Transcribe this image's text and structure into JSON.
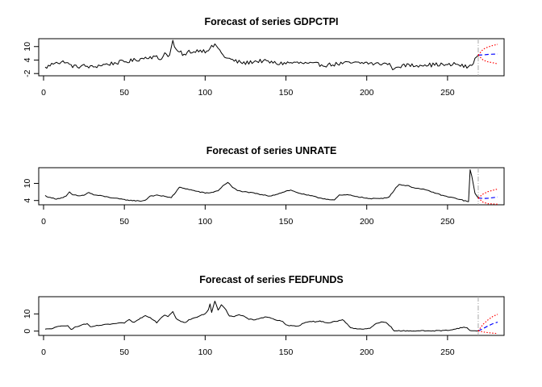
{
  "chart_data": [
    {
      "type": "line",
      "title": "Forecast of series GDPCTPI",
      "xlabel": "",
      "ylabel": "",
      "xlim": [
        -3,
        285
      ],
      "ylim": [
        -3,
        13.5
      ],
      "xticks": [
        0,
        50,
        100,
        150,
        200,
        250
      ],
      "yticks": [
        -2,
        4,
        10
      ],
      "forecast_start": 269,
      "anchors": [
        [
          1,
          0.5
        ],
        [
          5,
          2.0
        ],
        [
          8,
          3.6
        ],
        [
          10,
          2.4
        ],
        [
          13,
          3.5
        ],
        [
          16,
          1.8
        ],
        [
          20,
          1.0
        ],
        [
          25,
          1.4
        ],
        [
          30,
          0.8
        ],
        [
          35,
          1.7
        ],
        [
          40,
          2.2
        ],
        [
          45,
          2.8
        ],
        [
          48,
          3.1
        ],
        [
          52,
          3.4
        ],
        [
          56,
          3.9
        ],
        [
          60,
          4.5
        ],
        [
          65,
          5.5
        ],
        [
          70,
          5.2
        ],
        [
          72,
          4.2
        ],
        [
          75,
          7.0
        ],
        [
          78,
          6.0
        ],
        [
          80,
          12.5
        ],
        [
          82,
          8.0
        ],
        [
          85,
          7.2
        ],
        [
          88,
          6.0
        ],
        [
          90,
          8.0
        ],
        [
          93,
          7.5
        ],
        [
          96,
          8.5
        ],
        [
          100,
          8.0
        ],
        [
          104,
          9.8
        ],
        [
          107,
          10.6
        ],
        [
          110,
          7.0
        ],
        [
          113,
          5.0
        ],
        [
          116,
          4.2
        ],
        [
          120,
          3.2
        ],
        [
          125,
          2.6
        ],
        [
          130,
          3.4
        ],
        [
          135,
          3.6
        ],
        [
          140,
          3.1
        ],
        [
          145,
          2.4
        ],
        [
          150,
          2.7
        ],
        [
          155,
          2.8
        ],
        [
          160,
          2.6
        ],
        [
          165,
          2.3
        ],
        [
          170,
          2.1
        ],
        [
          175,
          1.8
        ],
        [
          180,
          2.1
        ],
        [
          185,
          2.5
        ],
        [
          190,
          2.7
        ],
        [
          195,
          2.6
        ],
        [
          200,
          2.8
        ],
        [
          205,
          2.2
        ],
        [
          210,
          2.5
        ],
        [
          213,
          2.3
        ],
        [
          215,
          1.6
        ],
        [
          217,
          -0.7
        ],
        [
          219,
          1.5
        ],
        [
          222,
          1.2
        ],
        [
          225,
          1.8
        ],
        [
          230,
          1.5
        ],
        [
          235,
          2.1
        ],
        [
          240,
          1.8
        ],
        [
          245,
          2.1
        ],
        [
          250,
          1.6
        ],
        [
          255,
          2.3
        ],
        [
          260,
          1.2
        ],
        [
          263,
          0.8
        ],
        [
          265,
          2.0
        ],
        [
          267,
          4.6
        ],
        [
          269,
          6.2
        ]
      ],
      "noise": 0.9,
      "series": [
        {
          "x": [
            269,
            272,
            275,
            278,
            281
          ],
          "values": [
            6.2,
            6.3,
            6.5,
            6.6,
            6.7
          ],
          "color": "#0000ff",
          "dash": "dashed"
        },
        {
          "x": [
            269,
            272,
            275,
            278,
            281
          ],
          "values": [
            6.2,
            8.8,
            9.8,
            10.5,
            11.0
          ],
          "color": "#ff0000",
          "dash": "dotted"
        },
        {
          "x": [
            269,
            272,
            275,
            278,
            281
          ],
          "values": [
            6.2,
            4.0,
            3.2,
            2.8,
            2.3
          ],
          "color": "#ff0000",
          "dash": "dotted"
        }
      ]
    },
    {
      "type": "line",
      "title": "Forecast of series UNRATE",
      "xlabel": "",
      "ylabel": "",
      "xlim": [
        -3,
        285
      ],
      "ylim": [
        2.5,
        15.5
      ],
      "xticks": [
        0,
        50,
        100,
        150,
        200,
        250
      ],
      "yticks": [
        4,
        10
      ],
      "forecast_start": 269,
      "anchors": [
        [
          1,
          5.7
        ],
        [
          4,
          5.0
        ],
        [
          8,
          4.6
        ],
        [
          11,
          4.9
        ],
        [
          14,
          5.5
        ],
        [
          16,
          6.9
        ],
        [
          18,
          6.0
        ],
        [
          22,
          5.6
        ],
        [
          25,
          5.9
        ],
        [
          28,
          6.8
        ],
        [
          31,
          6.0
        ],
        [
          36,
          5.6
        ],
        [
          40,
          5.2
        ],
        [
          45,
          4.7
        ],
        [
          50,
          4.3
        ],
        [
          55,
          4.0
        ],
        [
          60,
          3.8
        ],
        [
          63,
          4.1
        ],
        [
          66,
          5.6
        ],
        [
          70,
          5.8
        ],
        [
          75,
          5.5
        ],
        [
          79,
          5.0
        ],
        [
          82,
          7.0
        ],
        [
          84,
          8.6
        ],
        [
          87,
          8.3
        ],
        [
          92,
          7.6
        ],
        [
          96,
          7.1
        ],
        [
          100,
          6.6
        ],
        [
          105,
          6.9
        ],
        [
          108,
          7.5
        ],
        [
          112,
          9.6
        ],
        [
          114,
          10.4
        ],
        [
          117,
          8.6
        ],
        [
          120,
          7.5
        ],
        [
          125,
          7.0
        ],
        [
          130,
          6.6
        ],
        [
          135,
          6.0
        ],
        [
          140,
          5.6
        ],
        [
          145,
          6.3
        ],
        [
          150,
          7.3
        ],
        [
          153,
          7.6
        ],
        [
          157,
          6.8
        ],
        [
          162,
          6.0
        ],
        [
          166,
          5.6
        ],
        [
          170,
          5.0
        ],
        [
          175,
          4.5
        ],
        [
          180,
          4.2
        ],
        [
          183,
          5.8
        ],
        [
          188,
          6.0
        ],
        [
          194,
          5.4
        ],
        [
          198,
          5.0
        ],
        [
          202,
          4.6
        ],
        [
          206,
          4.7
        ],
        [
          210,
          4.8
        ],
        [
          214,
          5.3
        ],
        [
          218,
          8.5
        ],
        [
          220,
          9.6
        ],
        [
          225,
          9.2
        ],
        [
          230,
          8.4
        ],
        [
          235,
          7.9
        ],
        [
          240,
          7.1
        ],
        [
          245,
          6.1
        ],
        [
          250,
          5.3
        ],
        [
          255,
          4.8
        ],
        [
          260,
          4.0
        ],
        [
          263,
          3.6
        ],
        [
          264,
          14.8
        ],
        [
          265,
          12.5
        ],
        [
          267,
          6.5
        ],
        [
          269,
          4.9
        ]
      ],
      "noise": 0.15,
      "series": [
        {
          "x": [
            269,
            272,
            275,
            278,
            281
          ],
          "values": [
            4.9,
            4.7,
            4.8,
            5.0,
            5.2
          ],
          "color": "#0000ff",
          "dash": "dashed"
        },
        {
          "x": [
            269,
            272,
            275,
            278,
            281
          ],
          "values": [
            4.9,
            6.3,
            7.1,
            7.6,
            8.0
          ],
          "color": "#ff0000",
          "dash": "dotted"
        },
        {
          "x": [
            269,
            272,
            275,
            278,
            281
          ],
          "values": [
            4.9,
            3.4,
            2.9,
            2.8,
            2.7
          ],
          "color": "#ff0000",
          "dash": "dotted"
        }
      ]
    },
    {
      "type": "line",
      "title": "Forecast of series FEDFUNDS",
      "xlabel": "",
      "ylabel": "",
      "xlim": [
        -3,
        285
      ],
      "ylim": [
        -2.5,
        20
      ],
      "xticks": [
        0,
        50,
        100,
        150,
        200,
        250
      ],
      "yticks": [
        0,
        10
      ],
      "forecast_start": 269,
      "anchors": [
        [
          1,
          1.0
        ],
        [
          5,
          1.5
        ],
        [
          10,
          2.8
        ],
        [
          13,
          3.0
        ],
        [
          15,
          3.4
        ],
        [
          17,
          1.0
        ],
        [
          19,
          2.0
        ],
        [
          22,
          3.0
        ],
        [
          25,
          4.0
        ],
        [
          27,
          4.2
        ],
        [
          29,
          2.3
        ],
        [
          32,
          3.0
        ],
        [
          36,
          3.5
        ],
        [
          40,
          3.9
        ],
        [
          45,
          4.4
        ],
        [
          50,
          4.8
        ],
        [
          53,
          6.5
        ],
        [
          56,
          5.0
        ],
        [
          60,
          7.5
        ],
        [
          63,
          9.0
        ],
        [
          66,
          8.0
        ],
        [
          68,
          6.5
        ],
        [
          70,
          5.0
        ],
        [
          73,
          8.0
        ],
        [
          75,
          9.5
        ],
        [
          77,
          8.5
        ],
        [
          80,
          11.5
        ],
        [
          82,
          7.5
        ],
        [
          85,
          5.5
        ],
        [
          88,
          5.0
        ],
        [
          90,
          6.5
        ],
        [
          93,
          7.5
        ],
        [
          96,
          8.5
        ],
        [
          99,
          9.8
        ],
        [
          100,
          10.0
        ],
        [
          102,
          12.5
        ],
        [
          103,
          16.0
        ],
        [
          104,
          11.0
        ],
        [
          106,
          17.5
        ],
        [
          108,
          12.0
        ],
        [
          110,
          15.5
        ],
        [
          112,
          13.5
        ],
        [
          115,
          9.0
        ],
        [
          118,
          8.5
        ],
        [
          121,
          9.5
        ],
        [
          124,
          8.5
        ],
        [
          127,
          7.0
        ],
        [
          130,
          6.5
        ],
        [
          134,
          7.5
        ],
        [
          138,
          8.3
        ],
        [
          141,
          7.5
        ],
        [
          144,
          6.5
        ],
        [
          148,
          5.5
        ],
        [
          150,
          3.5
        ],
        [
          154,
          3.0
        ],
        [
          158,
          3.2
        ],
        [
          162,
          5.0
        ],
        [
          165,
          5.8
        ],
        [
          168,
          5.5
        ],
        [
          171,
          5.7
        ],
        [
          174,
          5.2
        ],
        [
          176,
          4.8
        ],
        [
          180,
          5.5
        ],
        [
          185,
          6.5
        ],
        [
          187,
          5.0
        ],
        [
          190,
          2.0
        ],
        [
          193,
          1.5
        ],
        [
          196,
          1.2
        ],
        [
          200,
          1.2
        ],
        [
          203,
          2.2
        ],
        [
          206,
          4.5
        ],
        [
          209,
          5.2
        ],
        [
          212,
          5.0
        ],
        [
          213,
          4.0
        ],
        [
          215,
          2.5
        ],
        [
          217,
          0.2
        ],
        [
          220,
          0.15
        ],
        [
          225,
          0.15
        ],
        [
          230,
          0.15
        ],
        [
          240,
          0.15
        ],
        [
          247,
          0.3
        ],
        [
          250,
          0.5
        ],
        [
          255,
          1.2
        ],
        [
          259,
          2.2
        ],
        [
          262,
          1.9
        ],
        [
          264,
          0.4
        ],
        [
          266,
          0.1
        ],
        [
          269,
          0.1
        ]
      ],
      "noise": 0.25,
      "series": [
        {
          "x": [
            269,
            272,
            275,
            278,
            281
          ],
          "values": [
            0.1,
            1.5,
            3.0,
            4.3,
            5.2
          ],
          "color": "#0000ff",
          "dash": "dashed"
        },
        {
          "x": [
            269,
            272,
            275,
            278,
            281
          ],
          "values": [
            0.1,
            4.0,
            6.5,
            8.5,
            9.8
          ],
          "color": "#ff0000",
          "dash": "dotted"
        },
        {
          "x": [
            269,
            272,
            275,
            278,
            281
          ],
          "values": [
            0.1,
            -0.5,
            -0.9,
            -1.2,
            -1.4
          ],
          "color": "#ff0000",
          "dash": "dotted"
        }
      ]
    }
  ]
}
